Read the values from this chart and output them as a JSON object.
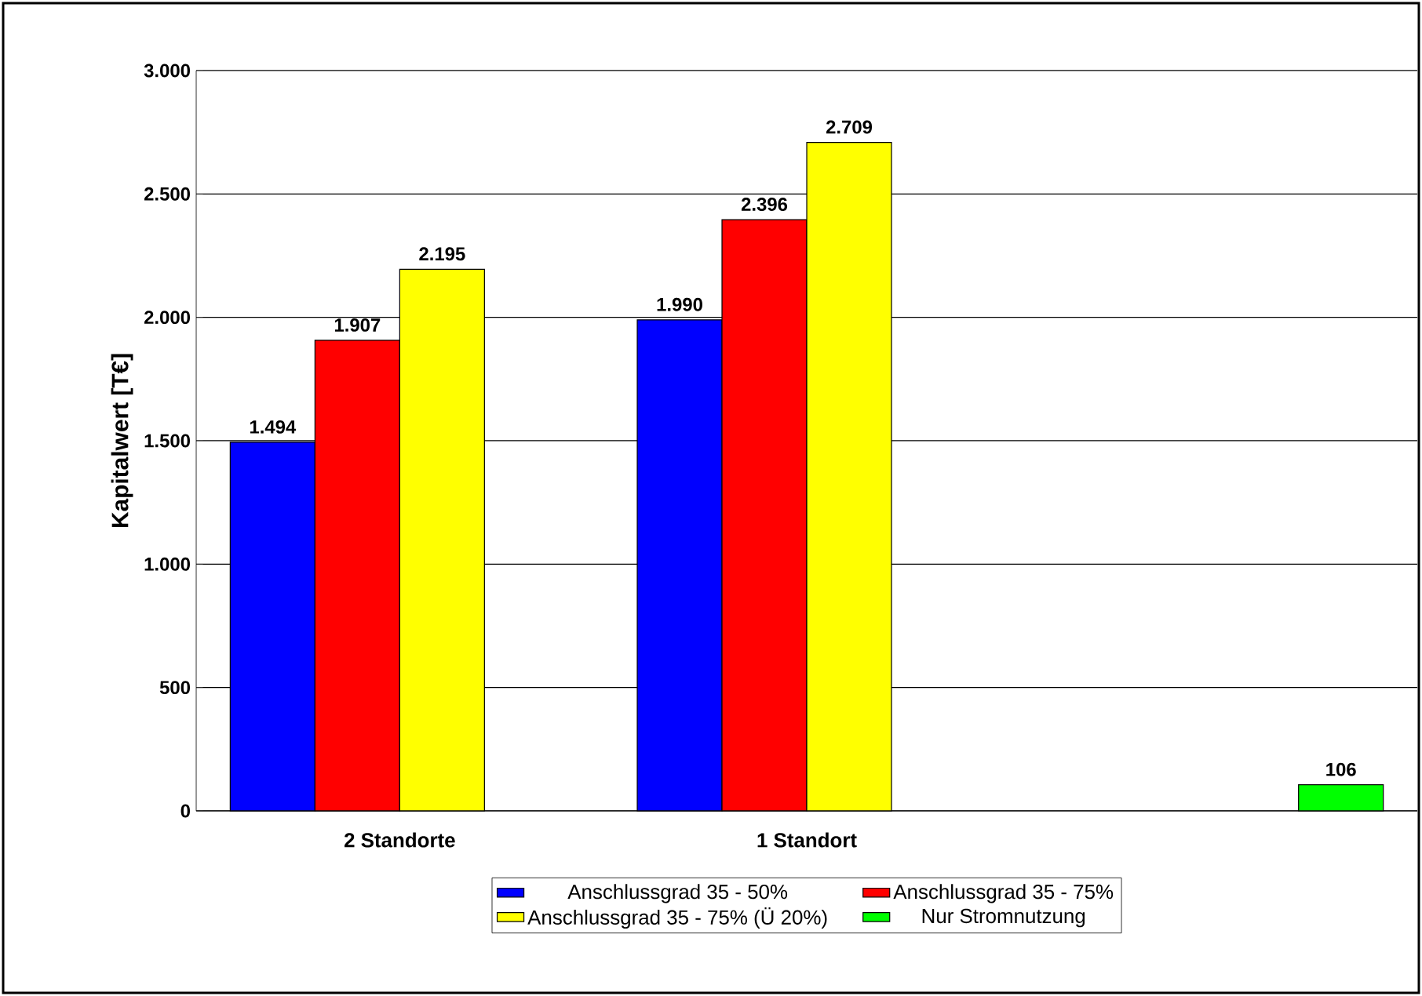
{
  "chart_data": {
    "type": "bar",
    "ylabel": "Kapitalwert [T€]",
    "categories": [
      "2 Standorte",
      "1 Standort",
      null
    ],
    "series": [
      {
        "name": "Anschlussgrad 35 - 50%",
        "color": "#0000ff",
        "values": [
          1494,
          1990,
          null
        ],
        "value_labels": [
          "1.494",
          "1.990",
          null
        ]
      },
      {
        "name": "Anschlussgrad 35 - 75%",
        "color": "#ff0000",
        "values": [
          1907,
          2396,
          null
        ],
        "value_labels": [
          "1.907",
          "2.396",
          null
        ]
      },
      {
        "name": "Anschlussgrad 35 - 75% (Ü 20%)",
        "color": "#ffff00",
        "values": [
          2195,
          2709,
          null
        ],
        "value_labels": [
          "2.195",
          "2.709",
          null
        ]
      },
      {
        "name": "Nur Stromnutzung",
        "color": "#00ff00",
        "values": [
          null,
          null,
          106
        ],
        "value_labels": [
          null,
          null,
          "106"
        ]
      }
    ],
    "ylim": [
      0,
      3000
    ],
    "yticks": [
      0,
      {
        "value": 500,
        "label": "500"
      },
      {
        "value": 1000,
        "label": "1.000"
      },
      {
        "value": 1500,
        "label": "1.500"
      },
      {
        "value": 2000,
        "label": "2.000"
      },
      {
        "value": 2500,
        "label": "2.500"
      },
      {
        "value": 3000,
        "label": "3.000"
      }
    ],
    "grid": "y",
    "legend": "bottom"
  }
}
